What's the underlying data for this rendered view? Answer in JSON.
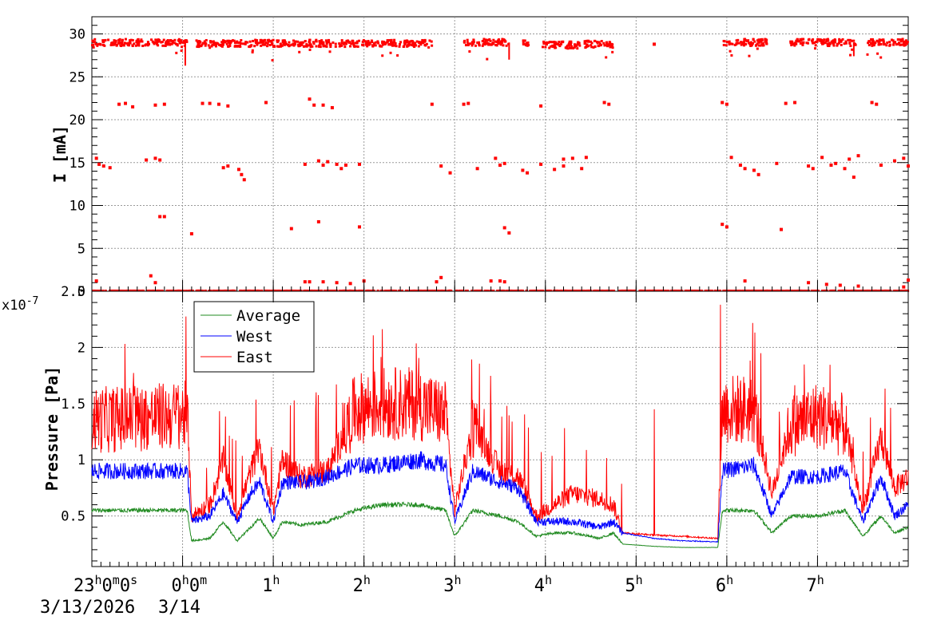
{
  "chart_data": [
    {
      "type": "scatter",
      "ylabel": "I [mA]",
      "ylim": [
        0,
        32
      ],
      "xlim_hours": [
        -1,
        8
      ],
      "yticks": [
        0,
        5,
        10,
        15,
        20,
        25,
        30
      ],
      "grid": true,
      "color": "#ff0000",
      "series": [
        {
          "main_band": [
            {
              "from": -1.0,
              "to": 0.05,
              "value": 29.0
            },
            {
              "from": 0.15,
              "to": 2.75,
              "value": 28.9
            },
            {
              "from": 3.1,
              "to": 3.6,
              "value": 29.0
            },
            {
              "from": 3.75,
              "to": 3.82,
              "value": 29.0
            },
            {
              "from": 3.97,
              "to": 4.38,
              "value": 28.7
            },
            {
              "from": 4.42,
              "to": 4.75,
              "value": 28.8
            },
            {
              "from": 5.93,
              "to": 6.45,
              "value": 29.0
            },
            {
              "from": 6.7,
              "to": 7.42,
              "value": 29.0
            },
            {
              "from": 7.55,
              "to": 8.0,
              "value": 29.0
            }
          ],
          "scattered_points": [
            [
              -0.95,
              15.5
            ],
            [
              -0.92,
              14.8
            ],
            [
              -0.87,
              14.6
            ],
            [
              -0.8,
              14.4
            ],
            [
              -0.7,
              21.8
            ],
            [
              -0.63,
              21.9
            ],
            [
              -0.55,
              21.5
            ],
            [
              -0.4,
              15.3
            ],
            [
              -0.3,
              15.5
            ],
            [
              -0.25,
              15.3
            ],
            [
              -0.3,
              21.7
            ],
            [
              -0.2,
              21.8
            ],
            [
              -0.25,
              8.7
            ],
            [
              -0.2,
              8.7
            ],
            [
              -0.35,
              1.8
            ],
            [
              -0.3,
              1.0
            ],
            [
              -0.95,
              1.2
            ],
            [
              0.1,
              6.7
            ],
            [
              0.22,
              21.9
            ],
            [
              0.3,
              21.9
            ],
            [
              0.4,
              21.8
            ],
            [
              0.5,
              21.6
            ],
            [
              0.45,
              14.4
            ],
            [
              0.5,
              14.6
            ],
            [
              0.62,
              14.2
            ],
            [
              0.65,
              13.6
            ],
            [
              0.68,
              13.0
            ],
            [
              0.92,
              22.0
            ],
            [
              1.2,
              7.3
            ],
            [
              1.35,
              14.8
            ],
            [
              1.4,
              22.4
            ],
            [
              1.45,
              21.7
            ],
            [
              1.55,
              21.7
            ],
            [
              1.5,
              15.2
            ],
            [
              1.55,
              14.7
            ],
            [
              1.6,
              15.1
            ],
            [
              1.7,
              14.8
            ],
            [
              1.75,
              14.3
            ],
            [
              1.65,
              21.4
            ],
            [
              1.8,
              14.7
            ],
            [
              1.95,
              14.8
            ],
            [
              1.95,
              7.5
            ],
            [
              1.5,
              8.1
            ],
            [
              1.35,
              1.1
            ],
            [
              1.4,
              1.1
            ],
            [
              1.55,
              1.1
            ],
            [
              1.7,
              1.0
            ],
            [
              1.85,
              0.9
            ],
            [
              2.0,
              1.2
            ],
            [
              2.8,
              1.1
            ],
            [
              2.85,
              1.6
            ],
            [
              2.75,
              21.8
            ],
            [
              2.85,
              14.6
            ],
            [
              2.95,
              13.8
            ],
            [
              3.1,
              21.8
            ],
            [
              3.15,
              21.9
            ],
            [
              3.25,
              14.3
            ],
            [
              3.45,
              15.5
            ],
            [
              3.5,
              14.7
            ],
            [
              3.55,
              14.9
            ],
            [
              3.55,
              7.4
            ],
            [
              3.6,
              6.8
            ],
            [
              3.4,
              1.2
            ],
            [
              3.5,
              1.2
            ],
            [
              3.55,
              1.1
            ],
            [
              3.75,
              14.1
            ],
            [
              3.8,
              13.8
            ],
            [
              3.95,
              14.8
            ],
            [
              3.95,
              21.6
            ],
            [
              4.1,
              14.2
            ],
            [
              4.2,
              14.6
            ],
            [
              4.3,
              15.5
            ],
            [
              4.45,
              15.6
            ],
            [
              4.4,
              14.3
            ],
            [
              4.2,
              15.4
            ],
            [
              4.65,
              22.0
            ],
            [
              4.7,
              21.8
            ],
            [
              5.2,
              28.8
            ],
            [
              5.95,
              22.0
            ],
            [
              6.0,
              21.8
            ],
            [
              5.95,
              7.8
            ],
            [
              6.0,
              7.5
            ],
            [
              6.05,
              15.6
            ],
            [
              6.15,
              14.7
            ],
            [
              6.2,
              14.3
            ],
            [
              6.3,
              14.1
            ],
            [
              6.35,
              13.6
            ],
            [
              6.2,
              1.2
            ],
            [
              6.55,
              14.9
            ],
            [
              6.65,
              21.9
            ],
            [
              6.75,
              22.0
            ],
            [
              6.6,
              7.2
            ],
            [
              6.9,
              14.6
            ],
            [
              6.95,
              14.3
            ],
            [
              7.05,
              15.6
            ],
            [
              7.15,
              14.7
            ],
            [
              7.2,
              14.9
            ],
            [
              7.3,
              14.3
            ],
            [
              7.35,
              15.4
            ],
            [
              7.4,
              13.3
            ],
            [
              7.45,
              15.8
            ],
            [
              7.6,
              22.0
            ],
            [
              7.65,
              21.8
            ],
            [
              7.7,
              14.7
            ],
            [
              7.85,
              15.2
            ],
            [
              7.95,
              15.5
            ],
            [
              8.0,
              14.6
            ],
            [
              6.9,
              1.0
            ],
            [
              7.1,
              0.8
            ],
            [
              7.25,
              0.7
            ],
            [
              7.45,
              0.6
            ],
            [
              8.0,
              1.3
            ],
            [
              7.95,
              0.5
            ]
          ]
        }
      ]
    },
    {
      "type": "line",
      "ylabel": "Pressure [Pa]",
      "ylim": [
        0.05,
        2.5
      ],
      "scale_exponent": "x10",
      "scale_exponent_power": "-7",
      "yticks": [
        0.5,
        1,
        1.5,
        2,
        2.5
      ],
      "ytick_labels": [
        "0.5",
        "1",
        "1.5",
        "2",
        "2.5"
      ],
      "grid": true,
      "legend": {
        "position": "top-left",
        "entries": [
          "Average",
          "West",
          "East"
        ]
      },
      "x_axis": {
        "start_label_main": "23",
        "start_label_sup": "h",
        "start_label_tail": "0",
        "start_label_sup2": "m",
        "start_label_tail2": "0",
        "start_label_sup3": "s",
        "date1": "3/13/2026",
        "date2": "3/14",
        "hour_ticks": [
          {
            "hour": 0,
            "main": "0",
            "sup": "h",
            "tail": "0",
            "sup2": "m"
          },
          {
            "hour": 1,
            "main": "1",
            "sup": "h"
          },
          {
            "hour": 2,
            "main": "2",
            "sup": "h"
          },
          {
            "hour": 3,
            "main": "3",
            "sup": "h"
          },
          {
            "hour": 4,
            "main": "4",
            "sup": "h"
          },
          {
            "hour": 5,
            "main": "5",
            "sup": "h"
          },
          {
            "hour": 6,
            "main": "6",
            "sup": "h"
          },
          {
            "hour": 7,
            "main": "7",
            "sup": "h"
          }
        ]
      },
      "series": [
        {
          "name": "Average",
          "color": "#228b22",
          "profile": [
            [
              -1.0,
              0.55
            ],
            [
              0.05,
              0.55
            ],
            [
              0.1,
              0.28
            ],
            [
              0.3,
              0.3
            ],
            [
              0.45,
              0.45
            ],
            [
              0.6,
              0.28
            ],
            [
              0.75,
              0.4
            ],
            [
              0.85,
              0.48
            ],
            [
              1.0,
              0.3
            ],
            [
              1.1,
              0.45
            ],
            [
              1.3,
              0.42
            ],
            [
              1.6,
              0.45
            ],
            [
              1.9,
              0.55
            ],
            [
              2.2,
              0.6
            ],
            [
              2.6,
              0.6
            ],
            [
              2.9,
              0.55
            ],
            [
              3.0,
              0.32
            ],
            [
              3.2,
              0.55
            ],
            [
              3.5,
              0.5
            ],
            [
              3.7,
              0.45
            ],
            [
              3.9,
              0.32
            ],
            [
              4.1,
              0.35
            ],
            [
              4.3,
              0.35
            ],
            [
              4.6,
              0.3
            ],
            [
              4.75,
              0.35
            ],
            [
              4.85,
              0.25
            ],
            [
              5.2,
              0.23
            ],
            [
              5.5,
              0.22
            ],
            [
              5.9,
              0.22
            ],
            [
              5.95,
              0.55
            ],
            [
              6.3,
              0.55
            ],
            [
              6.5,
              0.35
            ],
            [
              6.7,
              0.5
            ],
            [
              7.0,
              0.5
            ],
            [
              7.3,
              0.55
            ],
            [
              7.5,
              0.32
            ],
            [
              7.7,
              0.5
            ],
            [
              7.85,
              0.35
            ],
            [
              8.0,
              0.4
            ]
          ]
        },
        {
          "name": "West",
          "color": "#0000ff",
          "profile": [
            [
              -1.0,
              0.9
            ],
            [
              0.05,
              0.9
            ],
            [
              0.1,
              0.45
            ],
            [
              0.3,
              0.5
            ],
            [
              0.45,
              0.7
            ],
            [
              0.6,
              0.45
            ],
            [
              0.75,
              0.7
            ],
            [
              0.85,
              0.8
            ],
            [
              1.0,
              0.45
            ],
            [
              1.1,
              0.8
            ],
            [
              1.4,
              0.8
            ],
            [
              1.6,
              0.85
            ],
            [
              1.9,
              0.95
            ],
            [
              2.2,
              0.95
            ],
            [
              2.6,
              1.0
            ],
            [
              2.9,
              0.95
            ],
            [
              3.0,
              0.45
            ],
            [
              3.2,
              0.9
            ],
            [
              3.5,
              0.8
            ],
            [
              3.7,
              0.75
            ],
            [
              3.9,
              0.45
            ],
            [
              4.1,
              0.45
            ],
            [
              4.3,
              0.45
            ],
            [
              4.6,
              0.4
            ],
            [
              4.75,
              0.45
            ],
            [
              4.85,
              0.35
            ],
            [
              5.2,
              0.3
            ],
            [
              5.5,
              0.28
            ],
            [
              5.9,
              0.27
            ],
            [
              5.95,
              0.9
            ],
            [
              6.3,
              0.95
            ],
            [
              6.5,
              0.5
            ],
            [
              6.7,
              0.85
            ],
            [
              7.0,
              0.85
            ],
            [
              7.3,
              0.9
            ],
            [
              7.5,
              0.45
            ],
            [
              7.7,
              0.85
            ],
            [
              7.85,
              0.5
            ],
            [
              8.0,
              0.6
            ]
          ]
        },
        {
          "name": "East",
          "color": "#ff0000",
          "profile": [
            [
              -1.0,
              1.35
            ],
            [
              0.05,
              1.4
            ],
            [
              0.1,
              0.5
            ],
            [
              0.3,
              0.6
            ],
            [
              0.45,
              1.0
            ],
            [
              0.6,
              0.5
            ],
            [
              0.75,
              0.9
            ],
            [
              0.85,
              1.1
            ],
            [
              1.0,
              0.55
            ],
            [
              1.1,
              1.0
            ],
            [
              1.3,
              0.85
            ],
            [
              1.6,
              0.9
            ],
            [
              1.9,
              1.45
            ],
            [
              2.2,
              1.5
            ],
            [
              2.6,
              1.5
            ],
            [
              2.9,
              1.4
            ],
            [
              3.0,
              0.55
            ],
            [
              3.2,
              1.3
            ],
            [
              3.5,
              0.9
            ],
            [
              3.7,
              0.85
            ],
            [
              3.9,
              0.5
            ],
            [
              4.1,
              0.6
            ],
            [
              4.3,
              0.7
            ],
            [
              4.6,
              0.65
            ],
            [
              4.75,
              0.6
            ],
            [
              4.85,
              0.35
            ],
            [
              5.2,
              0.33
            ],
            [
              5.5,
              0.32
            ],
            [
              5.9,
              0.3
            ],
            [
              5.95,
              1.45
            ],
            [
              6.3,
              1.45
            ],
            [
              6.5,
              0.7
            ],
            [
              6.7,
              1.3
            ],
            [
              7.0,
              1.4
            ],
            [
              7.3,
              1.3
            ],
            [
              7.5,
              0.55
            ],
            [
              7.7,
              1.2
            ],
            [
              7.85,
              0.75
            ],
            [
              8.0,
              0.85
            ]
          ]
        }
      ]
    }
  ]
}
